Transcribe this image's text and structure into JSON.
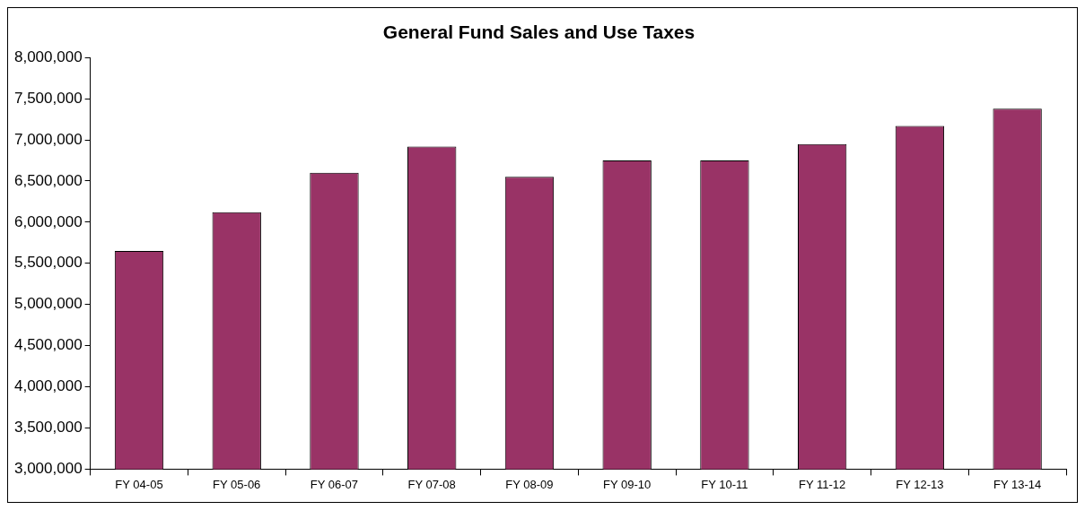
{
  "chart_data": {
    "type": "bar",
    "title": "General Fund Sales and Use Taxes",
    "categories": [
      "FY 04-05",
      "FY 05-06",
      "FY 06-07",
      "FY 07-08",
      "FY 08-09",
      "FY 09-10",
      "FY 10-11",
      "FY 11-12",
      "FY 12-13",
      "FY 13-14"
    ],
    "values": [
      5650000,
      6120000,
      6600000,
      6920000,
      6550000,
      6750000,
      6750000,
      6950000,
      7170000,
      7380000
    ],
    "color": "#993366",
    "ylim": [
      3000000,
      8000000
    ],
    "yticks": [
      {
        "value": 3000000,
        "label": "3,000,000"
      },
      {
        "value": 3500000,
        "label": "3,500,000"
      },
      {
        "value": 4000000,
        "label": "4,000,000"
      },
      {
        "value": 4500000,
        "label": "4,500,000"
      },
      {
        "value": 5000000,
        "label": "5,000,000"
      },
      {
        "value": 5500000,
        "label": "5,500,000"
      },
      {
        "value": 6000000,
        "label": "6,000,000"
      },
      {
        "value": 6500000,
        "label": "6,500,000"
      },
      {
        "value": 7000000,
        "label": "7,000,000"
      },
      {
        "value": 7500000,
        "label": "7,500,000"
      },
      {
        "value": 8000000,
        "label": "8,000,000"
      }
    ],
    "grid": false,
    "legend": false
  }
}
